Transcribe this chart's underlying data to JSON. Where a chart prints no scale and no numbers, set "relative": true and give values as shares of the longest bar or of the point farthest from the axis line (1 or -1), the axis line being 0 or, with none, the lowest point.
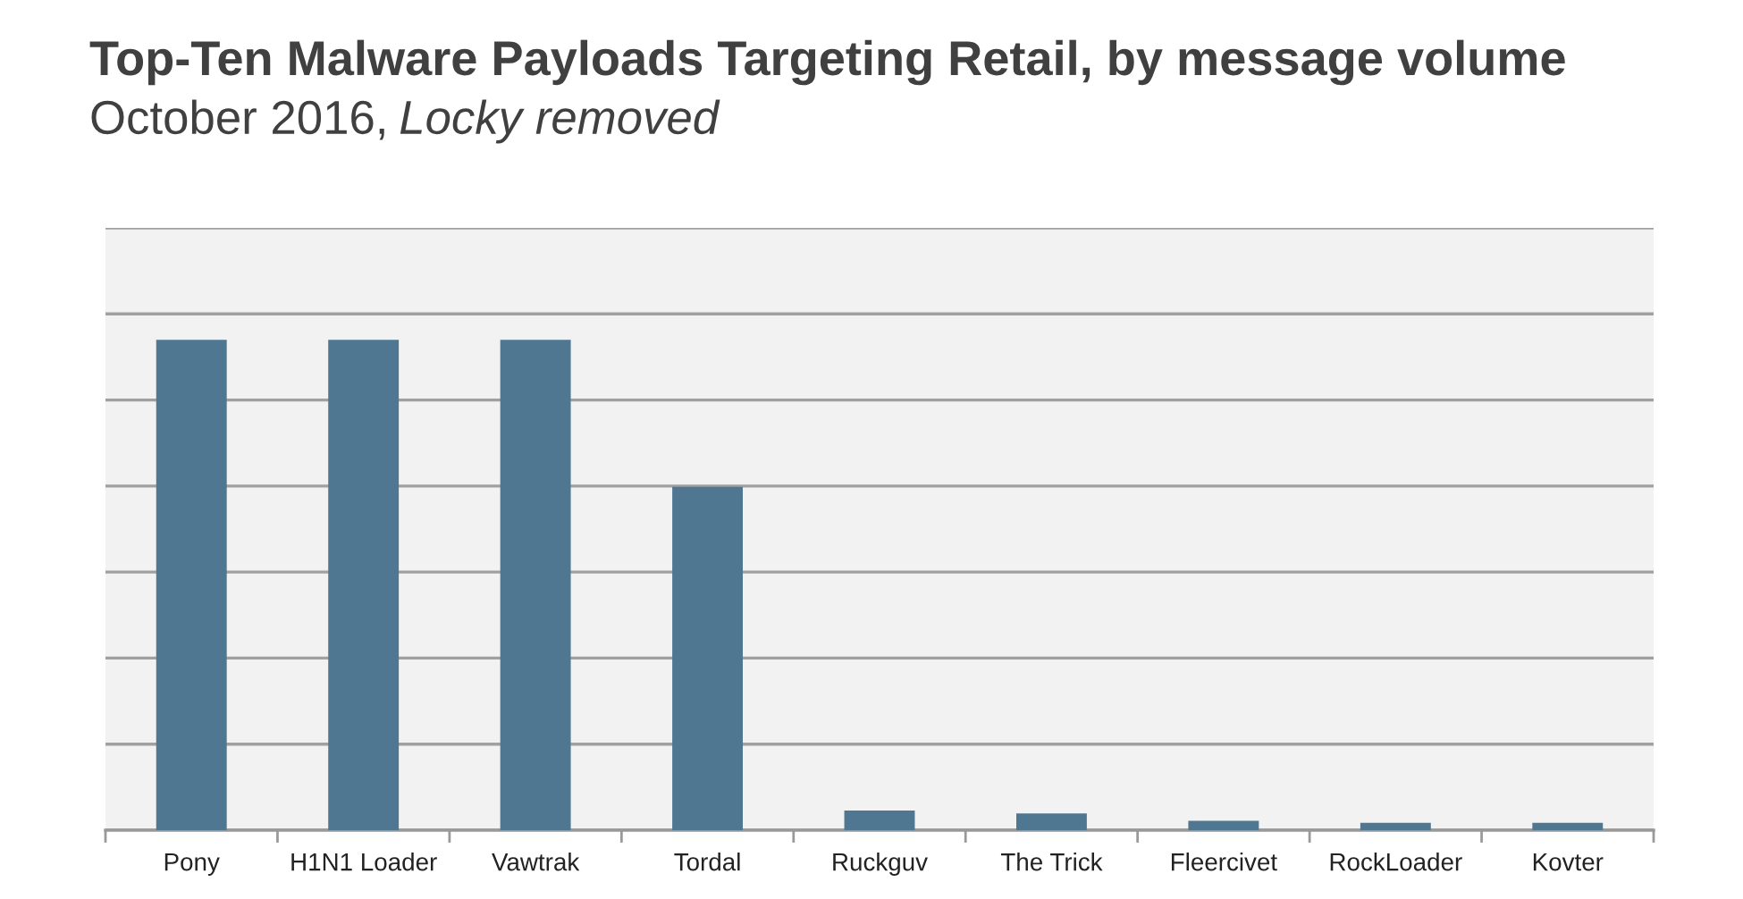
{
  "chart_data": {
    "type": "bar",
    "title": "Top-Ten Malware Payloads Targeting Retail, by message volume",
    "subtitle": "October 2016, Locky removed",
    "categories": [
      "Pony",
      "H1N1 Loader",
      "Vawtrak",
      "Tordal",
      "Ruckguv",
      "The Trick",
      "Fleercivet",
      "RockLoader",
      "Kovter"
    ],
    "values": [
      1,
      1,
      1,
      0.7,
      0.04,
      0.034,
      0.019,
      0.015,
      0.015
    ],
    "color": "#4f7791",
    "relative": true,
    "grid": "y"
  }
}
